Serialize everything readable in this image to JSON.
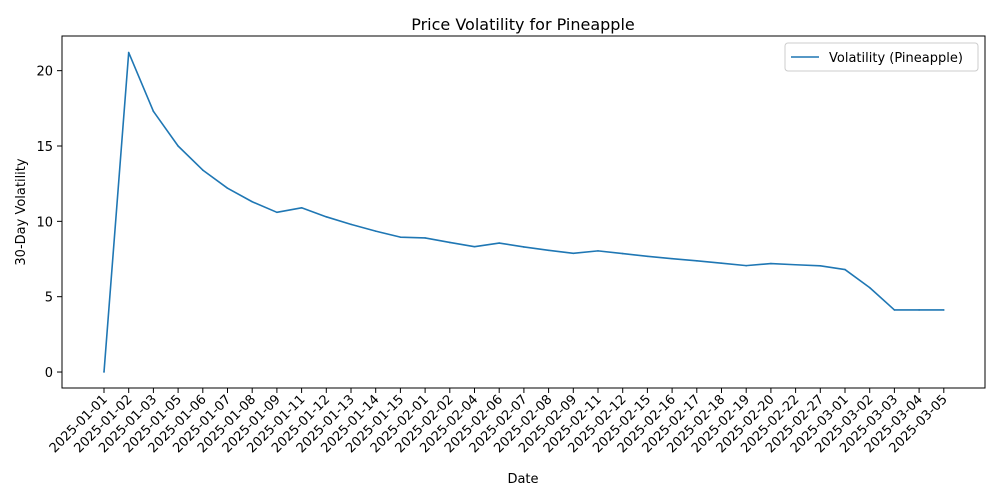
{
  "chart_data": {
    "type": "line",
    "title": "Price Volatility for Pineapple",
    "xlabel": "Date",
    "ylabel": "30-Day Volatility",
    "ylim": [
      -1.06,
      22.3
    ],
    "yticks": [
      0,
      5,
      10,
      15,
      20
    ],
    "grid": false,
    "legend_position": "top-right",
    "colors": {
      "series": "#1f77b4",
      "axis": "#000000"
    },
    "categories": [
      "2025-01-01",
      "2025-01-02",
      "2025-01-03",
      "2025-01-05",
      "2025-01-06",
      "2025-01-07",
      "2025-01-08",
      "2025-01-09",
      "2025-01-11",
      "2025-01-12",
      "2025-01-13",
      "2025-01-14",
      "2025-01-15",
      "2025-02-01",
      "2025-02-02",
      "2025-02-04",
      "2025-02-06",
      "2025-02-07",
      "2025-02-08",
      "2025-02-09",
      "2025-02-11",
      "2025-02-12",
      "2025-02-15",
      "2025-02-16",
      "2025-02-17",
      "2025-02-18",
      "2025-02-19",
      "2025-02-20",
      "2025-02-22",
      "2025-02-27",
      "2025-03-01",
      "2025-03-02",
      "2025-03-03",
      "2025-03-04",
      "2025-03-05"
    ],
    "series": [
      {
        "name": "Volatility (Pineapple)",
        "values": [
          0,
          21.2,
          17.3,
          15.0,
          13.4,
          12.2,
          11.3,
          10.6,
          10.9,
          10.3,
          9.8,
          9.35,
          8.95,
          8.9,
          8.6,
          8.32,
          8.56,
          8.3,
          8.08,
          7.88,
          8.04,
          7.86,
          7.68,
          7.52,
          7.38,
          7.22,
          7.06,
          7.2,
          7.12,
          7.05,
          6.8,
          5.6,
          4.12,
          4.12,
          4.12
        ]
      }
    ]
  }
}
